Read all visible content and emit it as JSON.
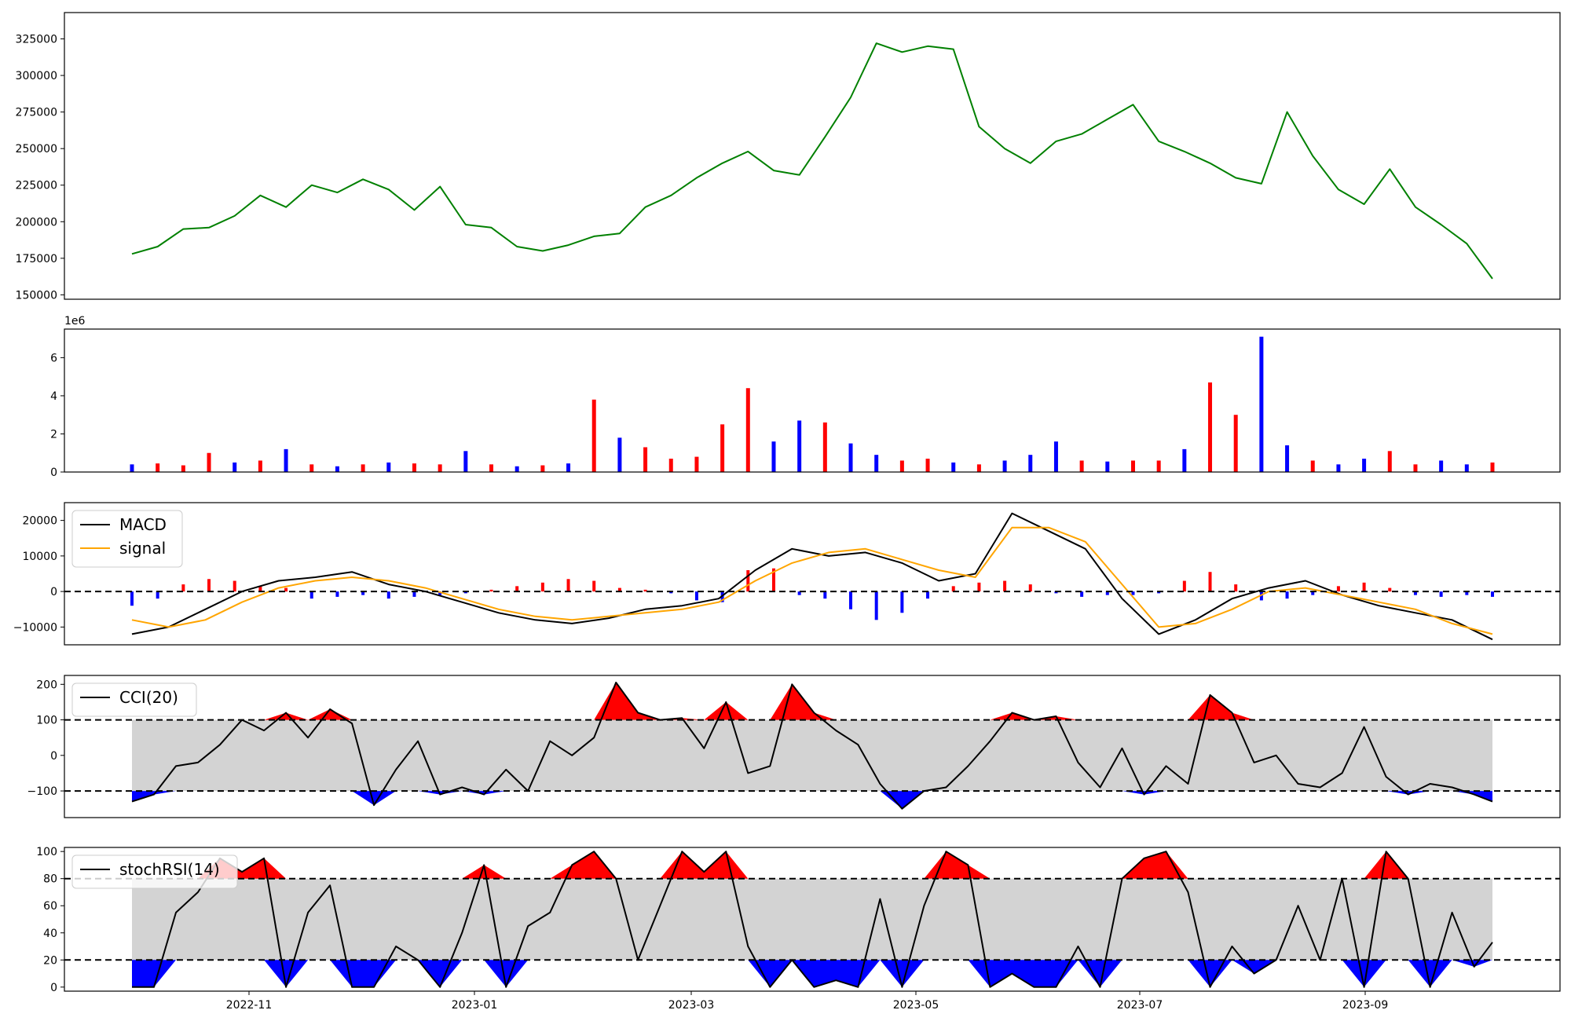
{
  "chart_data": {
    "type": "line",
    "x_ticks": [
      "2022-11",
      "2023-01",
      "2023-03",
      "2023-05",
      "2023-07",
      "2023-09"
    ],
    "panels": [
      {
        "id": "price",
        "type": "line",
        "ylim": [
          147000,
          343000
        ],
        "yticks": [
          150000,
          175000,
          200000,
          225000,
          250000,
          275000,
          300000,
          325000
        ],
        "ytick_labels": [
          "150000",
          "175000",
          "200000",
          "225000",
          "250000",
          "275000",
          "300000",
          "325000"
        ],
        "series": [
          {
            "color": "#008000",
            "x": [
              0,
              7,
              14,
              21,
              28,
              35,
              42,
              49,
              56,
              63,
              70,
              77,
              84,
              91,
              98,
              105,
              112,
              119,
              126,
              133,
              140,
              147,
              154,
              161,
              168,
              175,
              182,
              189,
              196,
              203,
              210,
              217,
              224,
              231,
              238,
              245,
              252,
              259,
              266,
              273,
              280,
              287,
              294,
              301,
              308,
              315,
              322,
              329,
              336,
              343,
              350,
              357,
              364,
              371
            ],
            "values": [
              178000,
              183000,
              195000,
              196000,
              204000,
              218000,
              210000,
              225000,
              220000,
              229000,
              222000,
              208000,
              224000,
              198000,
              196000,
              183000,
              180000,
              184000,
              190000,
              192000,
              210000,
              218000,
              230000,
              240000,
              248000,
              235000,
              232000,
              258000,
              285000,
              322000,
              316000,
              320000,
              318000,
              265000,
              250000,
              240000,
              255000,
              260000,
              270000,
              280000,
              255000,
              248000,
              240000,
              230000,
              226000,
              275000,
              245000,
              222000,
              212000,
              236000,
              210000,
              198000,
              185000,
              161000
            ]
          }
        ]
      },
      {
        "id": "volume",
        "type": "bar",
        "offset_label": "1e6",
        "ylim": [
          0,
          7.5
        ],
        "yticks": [
          0,
          2,
          4,
          6
        ],
        "ytick_labels": [
          "0",
          "2",
          "4",
          "6"
        ],
        "bars": {
          "x": [
            0,
            7,
            14,
            21,
            28,
            35,
            42,
            49,
            56,
            63,
            70,
            77,
            84,
            91,
            98,
            105,
            112,
            119,
            126,
            133,
            140,
            147,
            154,
            161,
            168,
            175,
            182,
            189,
            196,
            203,
            210,
            217,
            224,
            231,
            238,
            245,
            252,
            259,
            266,
            273,
            280,
            287,
            294,
            301,
            308,
            315,
            322,
            329,
            336,
            343,
            350,
            357,
            364,
            371
          ],
          "values": [
            0.4,
            0.45,
            0.35,
            1.0,
            0.5,
            0.6,
            1.2,
            0.4,
            0.3,
            0.4,
            0.5,
            0.45,
            0.4,
            1.1,
            0.4,
            0.3,
            0.35,
            0.45,
            3.8,
            1.8,
            1.3,
            0.7,
            0.8,
            2.5,
            4.4,
            1.6,
            2.7,
            2.6,
            1.5,
            0.9,
            0.6,
            0.7,
            0.5,
            0.4,
            0.6,
            0.9,
            1.6,
            0.6,
            0.55,
            0.6,
            0.6,
            1.2,
            4.7,
            3.0,
            7.1,
            1.4,
            0.6,
            0.4,
            0.7,
            1.1,
            0.4,
            0.6,
            0.4,
            0.5
          ],
          "colors": [
            "#0000ff",
            "#ff0000",
            "#ff0000",
            "#ff0000",
            "#0000ff",
            "#ff0000",
            "#0000ff",
            "#ff0000",
            "#0000ff",
            "#ff0000",
            "#0000ff",
            "#ff0000",
            "#ff0000",
            "#0000ff",
            "#ff0000",
            "#0000ff",
            "#ff0000",
            "#0000ff",
            "#ff0000",
            "#0000ff",
            "#ff0000",
            "#ff0000",
            "#ff0000",
            "#ff0000",
            "#ff0000",
            "#0000ff",
            "#0000ff",
            "#ff0000",
            "#0000ff",
            "#0000ff",
            "#ff0000",
            "#ff0000",
            "#0000ff",
            "#ff0000",
            "#0000ff",
            "#0000ff",
            "#0000ff",
            "#ff0000",
            "#0000ff",
            "#ff0000",
            "#ff0000",
            "#0000ff",
            "#ff0000",
            "#ff0000",
            "#0000ff",
            "#0000ff",
            "#ff0000",
            "#0000ff",
            "#0000ff",
            "#ff0000",
            "#ff0000",
            "#0000ff",
            "#0000ff",
            "#ff0000"
          ]
        }
      },
      {
        "id": "macd",
        "type": "line",
        "ylim": [
          -15000,
          25000
        ],
        "yticks": [
          -10000,
          0,
          10000,
          20000
        ],
        "ytick_labels": [
          "−10000",
          "0",
          "10000",
          "20000"
        ],
        "hlines": [
          0
        ],
        "legend": {
          "placement": "top-left",
          "entries": [
            "MACD",
            "signal"
          ]
        },
        "series": [
          {
            "name": "MACD",
            "color": "#000000",
            "x": [
              0,
              10,
              20,
              30,
              40,
              50,
              60,
              70,
              80,
              90,
              100,
              110,
              120,
              130,
              140,
              150,
              160,
              170,
              180,
              190,
              200,
              210,
              220,
              230,
              240,
              250,
              260,
              270,
              280,
              290,
              300,
              310,
              320,
              330,
              340,
              350,
              360,
              371
            ],
            "values": [
              -12000,
              -10000,
              -5000,
              0,
              3000,
              4000,
              5500,
              2000,
              0,
              -3000,
              -6000,
              -8000,
              -9000,
              -7500,
              -5000,
              -4000,
              -2000,
              6000,
              12000,
              10000,
              11000,
              8000,
              3000,
              5000,
              22000,
              17000,
              12000,
              -2000,
              -12000,
              -8000,
              -2000,
              1000,
              3000,
              -1000,
              -4000,
              -6000,
              -8000,
              -13500
            ]
          },
          {
            "name": "signal",
            "color": "#ffa500",
            "x": [
              0,
              10,
              20,
              30,
              40,
              50,
              60,
              70,
              80,
              90,
              100,
              110,
              120,
              130,
              140,
              150,
              160,
              170,
              180,
              190,
              200,
              210,
              220,
              230,
              240,
              250,
              260,
              270,
              280,
              290,
              300,
              310,
              320,
              330,
              340,
              350,
              360,
              371
            ],
            "values": [
              -8000,
              -10000,
              -8000,
              -3000,
              1000,
              3000,
              4000,
              3000,
              1000,
              -2000,
              -5000,
              -7000,
              -8000,
              -7000,
              -6000,
              -5000,
              -3000,
              3000,
              8000,
              11000,
              12000,
              9000,
              6000,
              4000,
              18000,
              18000,
              14000,
              2000,
              -10000,
              -9000,
              -5000,
              0,
              1000,
              -1000,
              -3000,
              -5000,
              -9000,
              -12000
            ]
          }
        ],
        "histogram": {
          "x": [
            0,
            7,
            14,
            21,
            28,
            35,
            42,
            49,
            56,
            63,
            70,
            77,
            84,
            91,
            98,
            105,
            112,
            119,
            126,
            133,
            140,
            147,
            154,
            161,
            168,
            175,
            182,
            189,
            196,
            203,
            210,
            217,
            224,
            231,
            238,
            245,
            252,
            259,
            266,
            273,
            280,
            287,
            294,
            301,
            308,
            315,
            322,
            329,
            336,
            343,
            350,
            357,
            364,
            371
          ],
          "values": [
            -4000,
            -2000,
            2000,
            3500,
            3000,
            1500,
            1000,
            -2000,
            -1500,
            -1000,
            -2000,
            -1500,
            -1000,
            -500,
            500,
            1500,
            2500,
            3500,
            3000,
            1000,
            500,
            -500,
            -2500,
            -3000,
            6000,
            6500,
            -1000,
            -2000,
            -5000,
            -8000,
            -6000,
            -2000,
            1500,
            2500,
            3000,
            2000,
            -500,
            -1500,
            -1000,
            -1000,
            -500,
            3000,
            5500,
            2000,
            -2500,
            -2000,
            -1000,
            1500,
            2500,
            1000,
            -1000,
            -1500,
            -1000,
            -1500
          ],
          "colors": [
            "#0000ff",
            "#0000ff",
            "#ff0000",
            "#ff0000",
            "#ff0000",
            "#ff0000",
            "#ff0000",
            "#0000ff",
            "#0000ff",
            "#0000ff",
            "#0000ff",
            "#0000ff",
            "#0000ff",
            "#0000ff",
            "#ff0000",
            "#ff0000",
            "#ff0000",
            "#ff0000",
            "#ff0000",
            "#ff0000",
            "#ff0000",
            "#0000ff",
            "#0000ff",
            "#0000ff",
            "#ff0000",
            "#ff0000",
            "#0000ff",
            "#0000ff",
            "#0000ff",
            "#0000ff",
            "#0000ff",
            "#0000ff",
            "#ff0000",
            "#ff0000",
            "#ff0000",
            "#ff0000",
            "#0000ff",
            "#0000ff",
            "#0000ff",
            "#0000ff",
            "#0000ff",
            "#ff0000",
            "#ff0000",
            "#ff0000",
            "#0000ff",
            "#0000ff",
            "#0000ff",
            "#ff0000",
            "#ff0000",
            "#ff0000",
            "#0000ff",
            "#0000ff",
            "#0000ff",
            "#0000ff"
          ]
        }
      },
      {
        "id": "cci",
        "type": "area",
        "ylim": [
          -175,
          225
        ],
        "yticks": [
          -100,
          0,
          100,
          200
        ],
        "ytick_labels": [
          "−100",
          "0",
          "100",
          "200"
        ],
        "hlines": [
          100,
          -100
        ],
        "band": [
          -100,
          100
        ],
        "legend": {
          "placement": "top-left",
          "entries": [
            "CCI(20)"
          ]
        },
        "series": [
          {
            "name": "CCI(20)",
            "color": "#000000",
            "x": [
              0,
              6,
              12,
              18,
              24,
              30,
              36,
              42,
              48,
              54,
              60,
              66,
              72,
              78,
              84,
              90,
              96,
              102,
              108,
              114,
              120,
              126,
              132,
              138,
              144,
              150,
              156,
              162,
              168,
              174,
              180,
              186,
              192,
              198,
              204,
              210,
              216,
              222,
              228,
              234,
              240,
              246,
              252,
              258,
              264,
              270,
              276,
              282,
              288,
              294,
              300,
              306,
              312,
              318,
              324,
              330,
              336,
              342,
              348,
              354,
              360,
              366,
              371
            ],
            "values": [
              -130,
              -110,
              -30,
              -20,
              30,
              100,
              70,
              120,
              50,
              130,
              90,
              -140,
              -40,
              40,
              -110,
              -90,
              -110,
              -40,
              -100,
              40,
              0,
              50,
              205,
              120,
              100,
              105,
              20,
              150,
              -50,
              -30,
              200,
              120,
              70,
              30,
              -80,
              -150,
              -100,
              -90,
              -30,
              40,
              120,
              100,
              110,
              -20,
              -90,
              20,
              -110,
              -30,
              -80,
              170,
              120,
              -20,
              0,
              -80,
              -90,
              -50,
              80,
              -60,
              -110,
              -80,
              -90,
              -110,
              -130
            ]
          }
        ]
      },
      {
        "id": "stochrsi",
        "type": "area",
        "ylim": [
          -3,
          103
        ],
        "yticks": [
          0,
          20,
          40,
          60,
          80,
          100
        ],
        "ytick_labels": [
          "0",
          "20",
          "40",
          "60",
          "80",
          "100"
        ],
        "hlines": [
          80,
          20
        ],
        "band": [
          20,
          80
        ],
        "legend": {
          "placement": "top-left",
          "entries": [
            "stochRSI(14)"
          ]
        },
        "series": [
          {
            "name": "stochRSI(14)",
            "color": "#000000",
            "x": [
              0,
              6,
              12,
              18,
              24,
              30,
              36,
              42,
              48,
              54,
              60,
              66,
              72,
              78,
              84,
              90,
              96,
              102,
              108,
              114,
              120,
              126,
              132,
              138,
              144,
              150,
              156,
              162,
              168,
              174,
              180,
              186,
              192,
              198,
              204,
              210,
              216,
              222,
              228,
              234,
              240,
              246,
              252,
              258,
              264,
              270,
              276,
              282,
              288,
              294,
              300,
              306,
              312,
              318,
              324,
              330,
              336,
              342,
              348,
              354,
              360,
              366,
              371
            ],
            "values": [
              0,
              0,
              55,
              70,
              95,
              85,
              95,
              0,
              55,
              75,
              0,
              0,
              30,
              20,
              0,
              40,
              90,
              0,
              45,
              55,
              90,
              100,
              80,
              20,
              60,
              100,
              85,
              100,
              30,
              0,
              20,
              0,
              5,
              0,
              65,
              0,
              60,
              100,
              90,
              0,
              10,
              0,
              0,
              30,
              0,
              80,
              95,
              100,
              70,
              0,
              30,
              10,
              20,
              60,
              20,
              80,
              0,
              100,
              80,
              0,
              55,
              15,
              33
            ]
          }
        ]
      }
    ]
  }
}
